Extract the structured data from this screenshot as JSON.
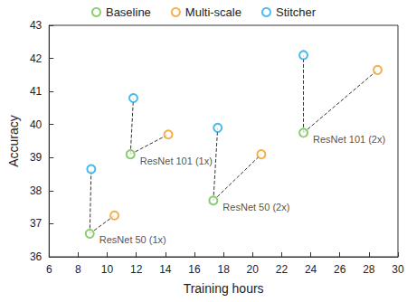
{
  "chart_data": {
    "type": "scatter",
    "x_label": "Training hours",
    "y_label": "Accuracy",
    "series": [
      {
        "name": "Baseline",
        "color": "#6cc24a",
        "marker": "circle",
        "x": [
          8.8,
          11.6,
          17.3,
          23.5
        ],
        "values": [
          36.7,
          39.1,
          37.7,
          39.75
        ],
        "labels": [
          "ResNet 50 (1x)",
          "ResNet 101 (1x)",
          "ResNet 50 (2x)",
          "ResNet 101 (2x)"
        ]
      },
      {
        "name": "Multi-scale",
        "color": "#f39c1f",
        "marker": "circle",
        "x": [
          10.5,
          14.2,
          20.6,
          28.6
        ],
        "values": [
          37.25,
          39.7,
          39.1,
          41.65
        ]
      },
      {
        "name": "Stitcher",
        "color": "#1ea7e8",
        "marker": "circle",
        "x": [
          8.9,
          11.8,
          17.6,
          23.5
        ],
        "values": [
          38.65,
          40.8,
          39.9,
          42.1
        ]
      }
    ],
    "xlim": [
      6,
      30
    ],
    "xticks": [
      6,
      8,
      10,
      12,
      14,
      16,
      18,
      20,
      22,
      24,
      26,
      28,
      30
    ],
    "ylim": [
      36,
      43
    ],
    "yticks": [
      36,
      37,
      38,
      39,
      40,
      41,
      42,
      43
    ],
    "grid": false,
    "legend": "top"
  }
}
